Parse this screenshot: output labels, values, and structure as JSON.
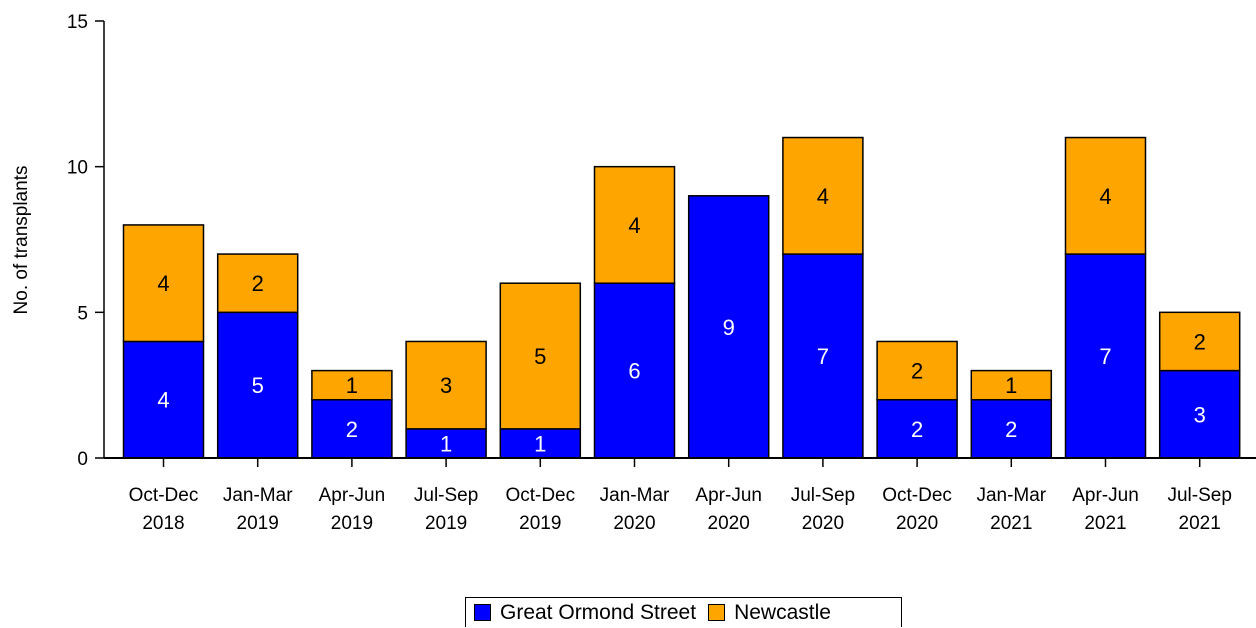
{
  "chart_data": {
    "type": "bar",
    "stacked": true,
    "ylabel": "No. of transplants",
    "ylim": [
      0,
      15
    ],
    "yticks": [
      0,
      5,
      10,
      15
    ],
    "categories": [
      [
        "Oct-Dec",
        "2018"
      ],
      [
        "Jan-Mar",
        "2019"
      ],
      [
        "Apr-Jun",
        "2019"
      ],
      [
        "Jul-Sep",
        "2019"
      ],
      [
        "Oct-Dec",
        "2019"
      ],
      [
        "Jan-Mar",
        "2020"
      ],
      [
        "Apr-Jun",
        "2020"
      ],
      [
        "Jul-Sep",
        "2020"
      ],
      [
        "Oct-Dec",
        "2020"
      ],
      [
        "Jan-Mar",
        "2021"
      ],
      [
        "Apr-Jun",
        "2021"
      ],
      [
        "Jul-Sep",
        "2021"
      ]
    ],
    "series": [
      {
        "name": "Great Ormond Street",
        "color": "#0000ff",
        "label_color": "#ffffff",
        "values": [
          4,
          5,
          2,
          1,
          1,
          6,
          9,
          7,
          2,
          2,
          7,
          3
        ]
      },
      {
        "name": "Newcastle",
        "color": "#ffa500",
        "label_color": "#000000",
        "values": [
          4,
          2,
          1,
          3,
          5,
          4,
          0,
          4,
          2,
          1,
          4,
          2
        ]
      }
    ],
    "legend_position": "bottom-center",
    "grid": false
  }
}
